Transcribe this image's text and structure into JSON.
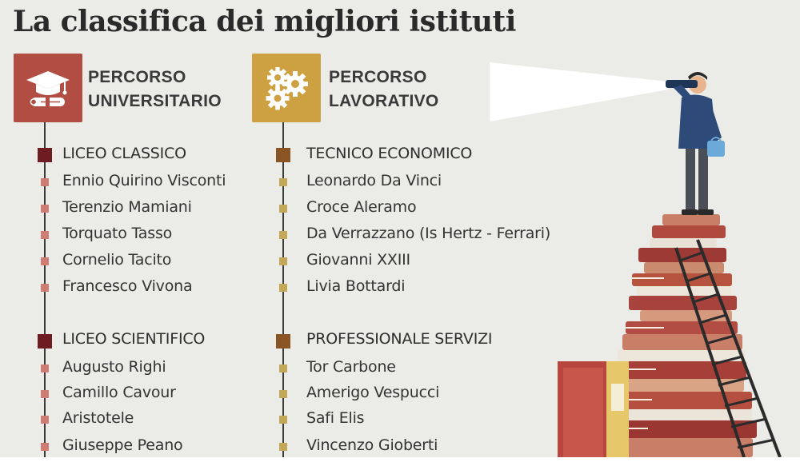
{
  "title": "La classifica dei migliori istituti",
  "colors": {
    "uni_icon": "#b24d44",
    "lav_icon": "#cda141",
    "uni_category_bullet": "#6e1c22",
    "uni_item_bullet": "#cf7c72",
    "lav_category_bullet": "#8a5524",
    "lav_item_bullet": "#c3a857"
  },
  "columns": [
    {
      "id": "universitario",
      "heading_line1": "PERCORSO",
      "heading_line2": "UNIVERSITARIO",
      "icon": "graduation-cap-diploma-icon",
      "groups": [
        {
          "category": "LICEO CLASSICO",
          "items": [
            "Ennio Quirino Visconti",
            "Terenzio Mamiani",
            "Torquato Tasso",
            "Cornelio Tacito",
            "Francesco Vivona"
          ]
        },
        {
          "category": "LICEO SCIENTIFICO",
          "items": [
            "Augusto Righi",
            "Camillo Cavour",
            "Aristotele",
            "Giuseppe Peano"
          ]
        }
      ]
    },
    {
      "id": "lavorativo",
      "heading_line1": "PERCORSO",
      "heading_line2": "LAVORATIVO",
      "icon": "gears-icon",
      "groups": [
        {
          "category": "TECNICO ECONOMICO",
          "items": [
            "Leonardo Da Vinci",
            "Croce Aleramo",
            "Da Verrazzano (Is Hertz - Ferrari)",
            "Giovanni XXIII",
            "Livia Bottardi"
          ]
        },
        {
          "category": "PROFESSIONALE SERVIZI",
          "items": [
            "Tor Carbone",
            "Amerigo Vespucci",
            "Safi Elis",
            "Vincenzo Gioberti"
          ]
        }
      ]
    }
  ],
  "illustration": "person-with-telescope-on-books-icon"
}
